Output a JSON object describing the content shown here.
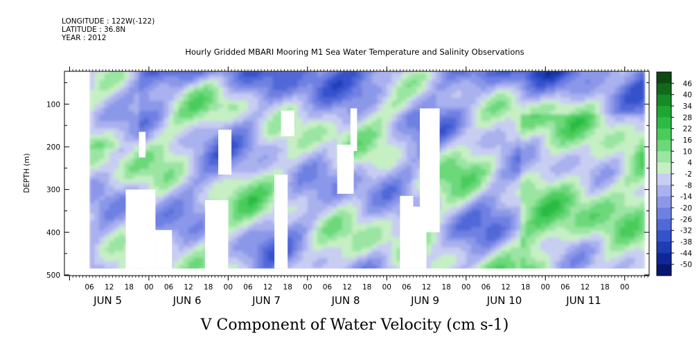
{
  "header": {
    "longitude": "LONGITUDE : 122W(-122)",
    "latitude": "LATITUDE : 36.8N",
    "year": "YEAR : 2012",
    "title": "Hourly Gridded MBARI Mooring M1 Sea Water Temperature and Salinity Observations"
  },
  "chart_data": {
    "type": "heatmap",
    "title": "V Component of Water Velocity (cm s-1)",
    "ylabel": "DEPTH (m)",
    "xlabel": "",
    "ylim": [
      500,
      20
    ],
    "y_ticks": [
      100,
      200,
      300,
      400,
      500
    ],
    "x_hour_ticks": [
      "06",
      "12",
      "18",
      "00",
      "06",
      "12",
      "18",
      "00",
      "06",
      "12",
      "18",
      "00",
      "06",
      "12",
      "18",
      "00",
      "06",
      "12",
      "18",
      "00",
      "06",
      "12",
      "18",
      "00",
      "06",
      "12",
      "18",
      "00"
    ],
    "x_day_labels": [
      "JUN  5",
      "JUN  6",
      "JUN  7",
      "JUN  8",
      "JUN  9",
      "JUN 10",
      "JUN 11"
    ],
    "colorbar": {
      "labels": [
        "46",
        "40",
        "34",
        "28",
        "22",
        "16",
        "10",
        "4",
        "-2",
        "-8",
        "-14",
        "-20",
        "-26",
        "-32",
        "-38",
        "-44",
        "-50"
      ],
      "colors": [
        "#0c4a12",
        "#116a1c",
        "#168a26",
        "#1ea632",
        "#2cbb44",
        "#48cc5c",
        "#6cd87a",
        "#9ae5a2",
        "#c6efc4",
        "#c8cdf2",
        "#a9b1ee",
        "#8b97e8",
        "#6e80e2",
        "#5168d8",
        "#3651cc",
        "#1f3cb4",
        "#10279a",
        "#08176e"
      ],
      "value_range": [
        -50,
        46
      ]
    },
    "time_range_hours": [
      0,
      168
    ],
    "depth_range": [
      20,
      485
    ],
    "data_gaps": [
      {
        "hours": [
          11,
          20
        ],
        "depth": [
          300,
          485
        ]
      },
      {
        "hours": [
          15,
          17
        ],
        "depth": [
          165,
          225
        ]
      },
      {
        "hours": [
          20,
          25
        ],
        "depth": [
          395,
          485
        ]
      },
      {
        "hours": [
          35,
          42
        ],
        "depth": [
          325,
          485
        ]
      },
      {
        "hours": [
          39,
          43
        ],
        "depth": [
          160,
          265
        ]
      },
      {
        "hours": [
          56,
          60
        ],
        "depth": [
          265,
          485
        ]
      },
      {
        "hours": [
          58,
          62
        ],
        "depth": [
          115,
          175
        ]
      },
      {
        "hours": [
          75,
          80
        ],
        "depth": [
          195,
          310
        ]
      },
      {
        "hours": [
          79,
          81
        ],
        "depth": [
          110,
          210
        ]
      },
      {
        "hours": [
          94,
          98
        ],
        "depth": [
          315,
          485
        ]
      },
      {
        "hours": [
          100,
          106
        ],
        "depth": [
          110,
          400
        ]
      },
      {
        "hours": [
          97,
          102
        ],
        "depth": [
          340,
          485
        ]
      }
    ]
  }
}
